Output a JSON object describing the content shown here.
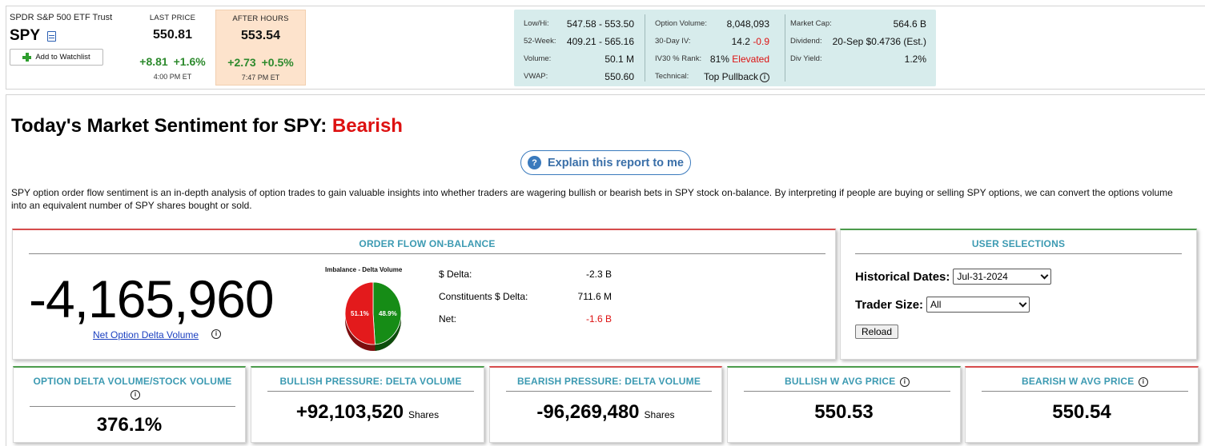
{
  "quote": {
    "company": "SPDR S&P 500 ETF Trust",
    "ticker": "SPY",
    "watchlist_label": "Add to Watchlist",
    "last": {
      "label": "LAST PRICE",
      "price": "550.81",
      "change": "+8.81",
      "pct": "+1.6%",
      "time": "4:00 PM ET"
    },
    "after": {
      "label": "AFTER HOURS",
      "price": "553.54",
      "change": "+2.73",
      "pct": "+0.5%",
      "time": "7:47 PM ET"
    }
  },
  "stats": {
    "col1": [
      {
        "label": "Low/Hi:",
        "value": "547.58 - 553.50"
      },
      {
        "label": "52-Week:",
        "value": "409.21 - 565.16"
      },
      {
        "label": "Volume:",
        "value": "50.1 M"
      },
      {
        "label": "VWAP:",
        "value": "550.60"
      }
    ],
    "col2": {
      "option_volume": {
        "label": "Option Volume:",
        "value": "8,048,093"
      },
      "iv30": {
        "label": "30-Day IV:",
        "value": "14.2",
        "change": "-0.9"
      },
      "ivrank": {
        "label": "IV30 % Rank:",
        "value": "81%",
        "status": "Elevated"
      },
      "technical": {
        "label": "Technical:",
        "value": "Top Pullback"
      }
    },
    "col3": [
      {
        "label": "Market Cap:",
        "value": "564.6 B"
      },
      {
        "label": "Dividend:",
        "value": "20-Sep $0.4736 (Est.)"
      },
      {
        "label": "Div Yield:",
        "value": "1.2%"
      }
    ]
  },
  "title": {
    "prefix": "Today's Market Sentiment for SPY:",
    "sentiment": "Bearish"
  },
  "explain_label": "Explain this report to me",
  "description": "SPY option order flow sentiment is an in-depth analysis of option trades to gain valuable insights into whether traders are wagering bullish or bearish bets in SPY stock on-balance. By interpreting if people are buying or selling SPY options, we can convert the options volume into an equivalent number of SPY shares bought or sold.",
  "order_flow": {
    "title": "ORDER FLOW ON-BALANCE",
    "value": "-4,165,960",
    "link_label": "Net Option Delta Volume",
    "pie": {
      "title": "Imbalance - Delta Volume",
      "bearish_pct": 51.1,
      "bullish_pct": 48.9,
      "bearish_label": "51.1%",
      "bullish_label": "48.9%",
      "bearish_color": "#e31a1c",
      "bullish_color": "#168c16"
    },
    "metrics": [
      {
        "label": "$ Delta:",
        "value": "-2.3 B"
      },
      {
        "label": "Constituents $ Delta:",
        "value": "711.6 M"
      },
      {
        "label": "Net:",
        "value": "-1.6 B"
      }
    ]
  },
  "user_selections": {
    "title": "USER SELECTIONS",
    "historical_label": "Historical Dates:",
    "historical_value": "Jul-31-2024",
    "trader_label": "Trader Size:",
    "trader_value": "All",
    "reload_label": "Reload"
  },
  "cards": {
    "ratio": {
      "title": "OPTION DELTA VOLUME/STOCK VOLUME",
      "value": "376.1%"
    },
    "bullish_pressure": {
      "title": "BULLISH PRESSURE: DELTA VOLUME",
      "value": "+92,103,520",
      "unit": "Shares"
    },
    "bearish_pressure": {
      "title": "BEARISH PRESSURE: DELTA VOLUME",
      "value": "-96,269,480",
      "unit": "Shares"
    },
    "bullish_avg": {
      "title": "BULLISH W AVG PRICE",
      "value": "550.53"
    },
    "bearish_avg": {
      "title": "BEARISH W AVG PRICE",
      "value": "550.54"
    }
  },
  "icons": {
    "info": "i",
    "question": "?"
  }
}
